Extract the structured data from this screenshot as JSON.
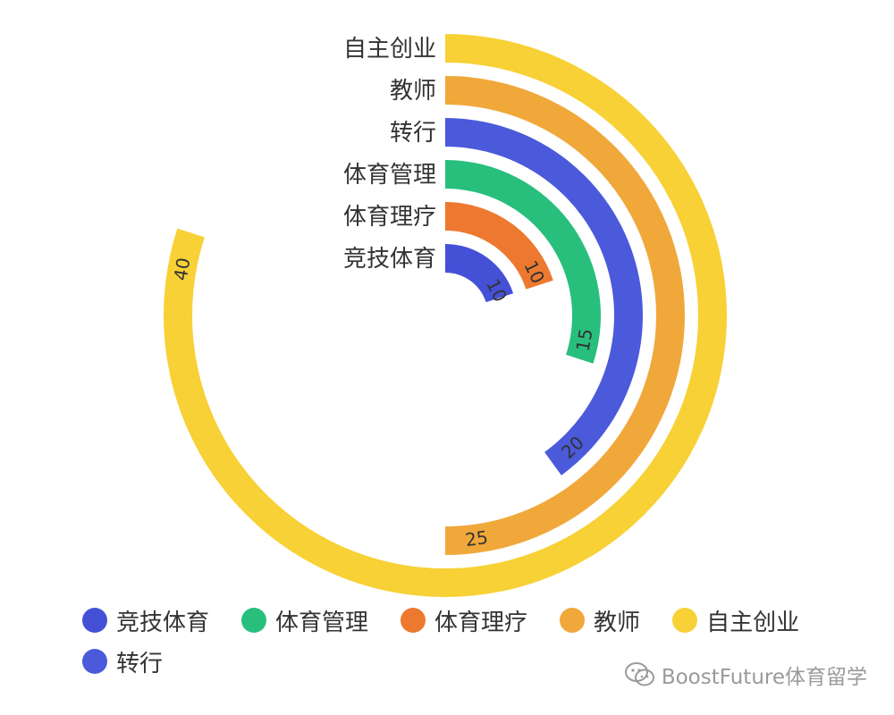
{
  "chart_data": {
    "type": "bar",
    "subtype": "radial-bar",
    "angle_max": 50,
    "categories": [
      "竞技体育",
      "体育理疗",
      "体育管理",
      "转行",
      "教师",
      "自主创业"
    ],
    "values": [
      10,
      10,
      15,
      20,
      25,
      40
    ],
    "colors": [
      "#4451d6",
      "#ec792f",
      "#28bf7d",
      "#4a5adb",
      "#f0a83a",
      "#f7d135"
    ],
    "data_labels": [
      "10",
      "10",
      "15",
      "20",
      "25",
      "40"
    ],
    "legend": [
      {
        "name": "竞技体育",
        "color": "#4451d6"
      },
      {
        "name": "体育管理",
        "color": "#28bf7d"
      },
      {
        "name": "体育理疗",
        "color": "#ec792f"
      },
      {
        "name": "教师",
        "color": "#f0a83a"
      },
      {
        "name": "自主创业",
        "color": "#f7d135"
      },
      {
        "name": "转行",
        "color": "#4a5adb"
      }
    ],
    "legend_position": "bottom-left"
  },
  "watermark": {
    "text": "BoostFuture体育留学",
    "icon": "wechat-icon"
  }
}
